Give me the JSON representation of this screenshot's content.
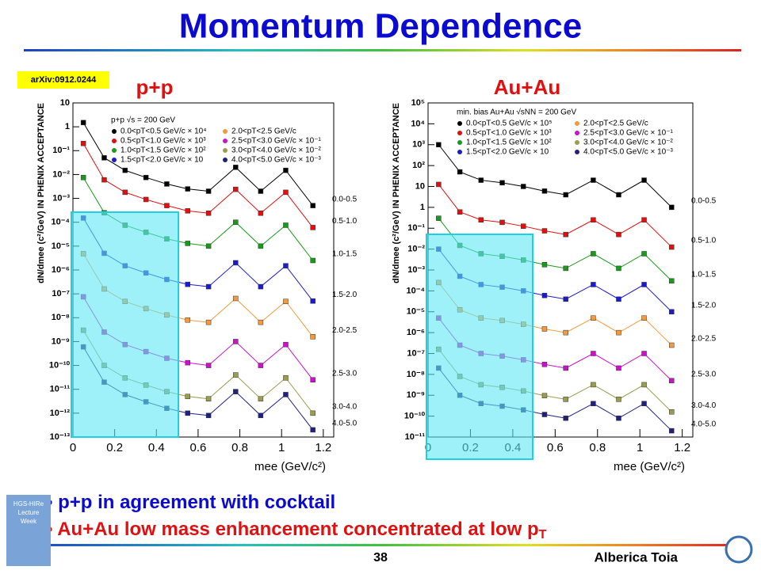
{
  "title": "Momentum Dependence",
  "reference": "arXiv:0912.0244",
  "bullets": [
    {
      "text": "p+p in agreement with cocktail",
      "sub": null
    },
    {
      "text": "Au+Au low mass enhancement concentrated at low p",
      "sub": "T"
    }
  ],
  "footer": {
    "page": "38",
    "author": "Alberica Toia",
    "logo": [
      "HGS-HIRe",
      "Lecture",
      "Week"
    ]
  },
  "chart_data": [
    {
      "type": "scatter",
      "title": "p+p",
      "legend_title": "p+p √s = 200 GeV",
      "xlabel": "mee (GeV/c²)",
      "ylabel": "dN/dmee (c²/GeV) IN PHENIX ACCEPTANCE",
      "log_y": true,
      "xlim": [
        0,
        1.25
      ],
      "ylim": [
        1e-13,
        10
      ],
      "xticks": [
        0,
        0.2,
        0.4,
        0.6,
        0.8,
        1,
        1.2
      ],
      "yticks": [
        10,
        1,
        {
          "value": 0.1,
          "label": "10⁻¹"
        },
        {
          "value": 0.01,
          "label": "10⁻²"
        },
        {
          "value": 0.001,
          "label": "10⁻³"
        },
        {
          "value": 0.0001,
          "label": "10⁻⁴"
        },
        {
          "value": 1e-05,
          "label": "10⁻⁵"
        },
        {
          "value": 1e-06,
          "label": "10⁻⁶"
        },
        {
          "value": 1e-07,
          "label": "10⁻⁷"
        },
        {
          "value": 1e-08,
          "label": "10⁻⁸"
        },
        {
          "value": 1e-09,
          "label": "10⁻⁹"
        },
        {
          "value": 1e-10,
          "label": "10⁻¹⁰"
        },
        {
          "value": 1e-11,
          "label": "10⁻¹¹"
        },
        {
          "value": 1e-12,
          "label": "10⁻¹²"
        },
        {
          "value": 1e-13,
          "label": "10⁻¹³"
        }
      ],
      "x": [
        0.05,
        0.15,
        0.25,
        0.35,
        0.45,
        0.55,
        0.65,
        0.78,
        0.9,
        1.02,
        1.15
      ],
      "series": [
        {
          "name": "0.0<pT<0.5 GeV/c × 10⁴",
          "range": "0.0-0.5",
          "color": "#000000",
          "values": [
            1.5,
            0.05,
            0.015,
            0.0075,
            0.004,
            0.0025,
            0.002,
            0.02,
            0.002,
            0.015,
            0.0005
          ]
        },
        {
          "name": "0.5<pT<1.0 GeV/c × 10³",
          "range": "0.5-1.0",
          "color": "#e01010",
          "values": [
            0.2,
            0.006,
            0.0018,
            0.0009,
            0.0005,
            0.0003,
            0.00024,
            0.0024,
            0.00024,
            0.0018,
            6e-05
          ]
        },
        {
          "name": "1.0<pT<1.5 GeV/c × 10²",
          "range": "1.0-1.5",
          "color": "#1a9a1a",
          "values": [
            0.0075,
            0.00025,
            7.5e-05,
            3.8e-05,
            2e-05,
            1.3e-05,
            1e-05,
            0.0001,
            1e-05,
            7.5e-05,
            2.5e-06
          ]
        },
        {
          "name": "1.5<pT<2.0 GeV/c × 10",
          "range": "1.5-2.0",
          "color": "#1c1ccc",
          "values": [
            0.00015,
            5e-06,
            1.5e-06,
            7.5e-07,
            4e-07,
            2.5e-07,
            2e-07,
            2e-06,
            2e-07,
            1.5e-06,
            5e-08
          ]
        },
        {
          "name": "2.0<pT<2.5 GeV/c",
          "range": "2.0-2.5",
          "color": "#f39a3c",
          "values": [
            4.8e-06,
            1.6e-07,
            4.8e-08,
            2.4e-08,
            1.3e-08,
            8e-09,
            6.4e-09,
            6.4e-08,
            6.4e-09,
            4.8e-08,
            1.6e-09
          ]
        },
        {
          "name": "2.5<pT<3.0 GeV/c × 10⁻¹",
          "range": "2.5-3.0",
          "color": "#cc10cc",
          "values": [
            7.5e-08,
            2.5e-09,
            7.5e-10,
            3.8e-10,
            2e-10,
            1.3e-10,
            1e-10,
            1e-09,
            1e-10,
            7.5e-10,
            2.5e-11
          ]
        },
        {
          "name": "3.0<pT<4.0 GeV/c × 10⁻²",
          "range": "3.0-4.0",
          "color": "#9c9c50",
          "values": [
            3e-09,
            1e-10,
            3e-11,
            1.5e-11,
            8e-12,
            5e-12,
            4e-12,
            4e-11,
            4e-12,
            3e-11,
            1e-12
          ]
        },
        {
          "name": "4.0<pT<5.0 GeV/c × 10⁻³",
          "range": "4.0-5.0",
          "color": "#202080",
          "values": [
            6e-10,
            2e-11,
            6e-12,
            3e-12,
            1.6e-12,
            1e-12,
            8e-13,
            8e-12,
            8e-13,
            6e-12,
            2e-13
          ]
        }
      ]
    },
    {
      "type": "scatter",
      "title": "Au+Au",
      "legend_title": "min. bias Au+Au √sNN = 200 GeV",
      "xlabel": "mee (GeV/c²)",
      "ylabel": "dN/dmee (c²/GeV) IN PHENIX ACCEPTANCE",
      "log_y": true,
      "xlim": [
        0,
        1.25
      ],
      "ylim": [
        1e-11,
        100000
      ],
      "xticks": [
        0,
        0.2,
        0.4,
        0.6,
        0.8,
        1,
        1.2
      ],
      "yticks": [
        {
          "value": 100000,
          "label": "10⁵"
        },
        {
          "value": 10000,
          "label": "10⁴"
        },
        {
          "value": 1000,
          "label": "10³"
        },
        {
          "value": 100,
          "label": "10²"
        },
        10,
        1,
        {
          "value": 0.1,
          "label": "10⁻¹"
        },
        {
          "value": 0.01,
          "label": "10⁻²"
        },
        {
          "value": 0.001,
          "label": "10⁻³"
        },
        {
          "value": 0.0001,
          "label": "10⁻⁴"
        },
        {
          "value": 1e-05,
          "label": "10⁻⁵"
        },
        {
          "value": 1e-06,
          "label": "10⁻⁶"
        },
        {
          "value": 1e-07,
          "label": "10⁻⁷"
        },
        {
          "value": 1e-08,
          "label": "10⁻⁸"
        },
        {
          "value": 1e-09,
          "label": "10⁻⁹"
        },
        {
          "value": 1e-10,
          "label": "10⁻¹⁰"
        },
        {
          "value": 1e-11,
          "label": "10⁻¹¹"
        }
      ],
      "x": [
        0.05,
        0.15,
        0.25,
        0.35,
        0.45,
        0.55,
        0.65,
        0.78,
        0.9,
        1.02,
        1.15
      ],
      "series": [
        {
          "name": "0.0<pT<0.5 GeV/c × 10⁵",
          "range": "0.0-0.5",
          "color": "#000000",
          "values": [
            1000,
            50,
            20,
            15,
            10,
            6,
            4,
            20,
            4,
            20,
            1
          ]
        },
        {
          "name": "0.5<pT<1.0 GeV/c × 10³",
          "range": "0.5-1.0",
          "color": "#e01010",
          "values": [
            12.5,
            0.6,
            0.25,
            0.19,
            0.125,
            0.075,
            0.05,
            0.25,
            0.05,
            0.25,
            0.0125
          ]
        },
        {
          "name": "1.0<pT<1.5 GeV/c × 10²",
          "range": "1.0-1.5",
          "color": "#1a9a1a",
          "values": [
            0.3,
            0.015,
            0.006,
            0.0045,
            0.003,
            0.0018,
            0.0012,
            0.006,
            0.0012,
            0.006,
            0.0003
          ]
        },
        {
          "name": "1.5<pT<2.0 GeV/c × 10",
          "range": "1.5-2.0",
          "color": "#1c1ccc",
          "values": [
            0.01,
            0.0005,
            0.0002,
            0.00015,
            0.0001,
            6e-05,
            4e-05,
            0.0002,
            4e-05,
            0.0002,
            1e-05
          ]
        },
        {
          "name": "2.0<pT<2.5 GeV/c",
          "range": "2.0-2.5",
          "color": "#f39a3c",
          "values": [
            0.00025,
            1.25e-05,
            5e-06,
            3.8e-06,
            2.5e-06,
            1.5e-06,
            1e-06,
            5e-06,
            1e-06,
            5e-06,
            2.5e-07
          ]
        },
        {
          "name": "2.5<pT<3.0 GeV/c × 10⁻¹",
          "range": "2.5-3.0",
          "color": "#cc10cc",
          "values": [
            5e-06,
            2.5e-07,
            1e-07,
            7.5e-08,
            5e-08,
            3e-08,
            2e-08,
            1e-07,
            2e-08,
            1e-07,
            5e-09
          ]
        },
        {
          "name": "3.0<pT<4.0 GeV/c × 10⁻²",
          "range": "3.0-4.0",
          "color": "#9c9c50",
          "values": [
            1.6e-07,
            8e-09,
            3.2e-09,
            2.4e-09,
            1.6e-09,
            9.6e-10,
            6.4e-10,
            3.2e-09,
            6.4e-10,
            3.2e-09,
            1.6e-10
          ]
        },
        {
          "name": "4.0<pT<5.0 GeV/c × 10⁻³",
          "range": "4.0-5.0",
          "color": "#202080",
          "values": [
            2e-08,
            1e-09,
            4e-10,
            3e-10,
            2e-10,
            1.2e-10,
            8e-11,
            4e-10,
            8e-11,
            4e-10,
            2e-11
          ]
        }
      ]
    }
  ]
}
